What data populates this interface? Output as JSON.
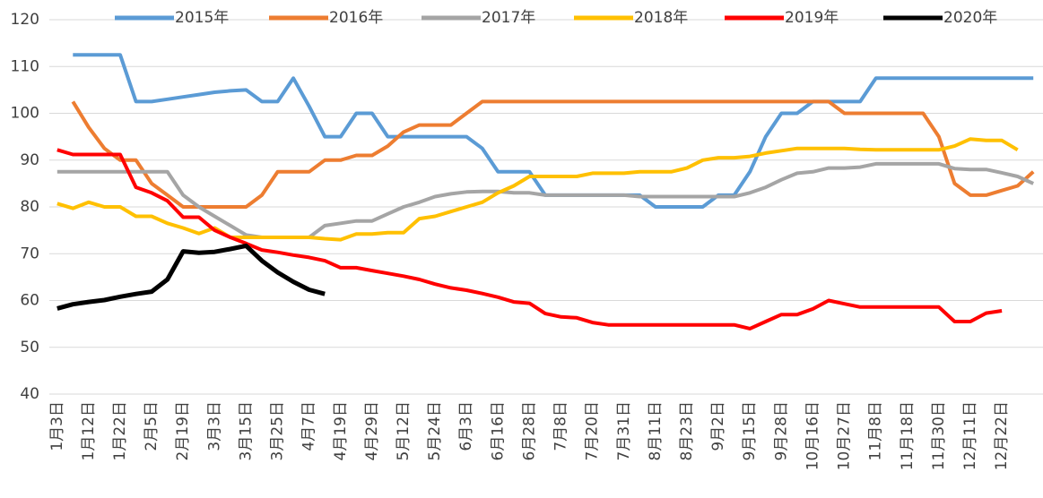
{
  "chart_data": {
    "type": "line",
    "categories": [
      "1月3日",
      null,
      "1月12日",
      null,
      "1月22日",
      null,
      "2月5日",
      null,
      "2月19日",
      null,
      "3月3日",
      null,
      "3月15日",
      null,
      "3月25日",
      null,
      "4月7日",
      null,
      "4月19日",
      null,
      "4月29日",
      null,
      "5月12日",
      null,
      "5月24日",
      null,
      "6月3日",
      null,
      "6月16日",
      null,
      "6月28日",
      null,
      "7月8日",
      null,
      "7月20日",
      null,
      "7月31日",
      null,
      "8月11日",
      null,
      "8月23日",
      null,
      "9月2日",
      null,
      "9月15日",
      null,
      "9月28日",
      null,
      "10月16日",
      null,
      "10月27日",
      null,
      "11月8日",
      null,
      "11月18日",
      null,
      "11月30日",
      null,
      "12月11日",
      null,
      "12月22日",
      null,
      null
    ],
    "series": [
      {
        "name": "2015年",
        "color": "#5b9bd5",
        "values": [
          null,
          112.5,
          112.5,
          112.5,
          112.5,
          102.5,
          102.5,
          103,
          103.5,
          104,
          104.5,
          104.8,
          105,
          102.5,
          102.5,
          107.5,
          101.5,
          95,
          95,
          100,
          100,
          95,
          95,
          95,
          95,
          95,
          95,
          92.5,
          87.5,
          87.5,
          87.5,
          82.5,
          82.5,
          82.5,
          82.5,
          82.5,
          82.5,
          82.5,
          80,
          80,
          80,
          80,
          82.5,
          82.5,
          87.5,
          95,
          100,
          100,
          102.5,
          102.5,
          102.5,
          102.5,
          107.5,
          107.5,
          107.5,
          107.5,
          107.5,
          107.5,
          107.5,
          107.5,
          107.5,
          107.5,
          107.5
        ]
      },
      {
        "name": "2016年",
        "color": "#ed7d31",
        "values": [
          null,
          102.5,
          97,
          92.5,
          90,
          90,
          85,
          82.5,
          80,
          80,
          80,
          80,
          80,
          82.5,
          87.5,
          87.5,
          87.5,
          90,
          90,
          91,
          91,
          93,
          96,
          97.5,
          97.5,
          97.5,
          100,
          102.5,
          102.5,
          102.5,
          102.5,
          102.5,
          102.5,
          102.5,
          102.5,
          102.5,
          102.5,
          102.5,
          102.5,
          102.5,
          102.5,
          102.5,
          102.5,
          102.5,
          102.5,
          102.5,
          102.5,
          102.5,
          102.5,
          102.5,
          100,
          100,
          100,
          100,
          100,
          100,
          95,
          85,
          82.5,
          82.5,
          83.5,
          84.5,
          87.5
        ]
      },
      {
        "name": "2017年",
        "color": "#a5a5a5",
        "values": [
          87.5,
          87.5,
          87.5,
          87.5,
          87.5,
          87.5,
          87.5,
          87.5,
          82.5,
          80,
          78,
          76,
          74,
          73.5,
          73.5,
          73.5,
          73.5,
          76,
          76.5,
          77,
          77,
          78.5,
          80,
          81,
          82.2,
          82.8,
          83.2,
          83.3,
          83.3,
          83,
          83,
          82.5,
          82.5,
          82.5,
          82.5,
          82.5,
          82.5,
          82.2,
          82.2,
          82.2,
          82.2,
          82.2,
          82.2,
          82.2,
          83,
          84.2,
          85.8,
          87.2,
          87.5,
          88.3,
          88.3,
          88.5,
          89.2,
          89.2,
          89.2,
          89.2,
          89.2,
          88.2,
          88,
          88,
          87.3,
          86.5,
          85
        ]
      },
      {
        "name": "2018年",
        "color": "#ffc000",
        "values": [
          80.7,
          79.7,
          81,
          80,
          80,
          78,
          78,
          76.5,
          75.5,
          74.3,
          75.5,
          73.5,
          73.5,
          73.5,
          73.5,
          73.5,
          73.5,
          73.2,
          73,
          74.2,
          74.2,
          74.5,
          74.5,
          77.5,
          78,
          79,
          80,
          81,
          83,
          84.5,
          86.5,
          86.5,
          86.5,
          86.5,
          87.2,
          87.2,
          87.2,
          87.5,
          87.5,
          87.5,
          88.3,
          90,
          90.5,
          90.5,
          90.8,
          91.5,
          92,
          92.5,
          92.5,
          92.5,
          92.5,
          92.3,
          92.2,
          92.2,
          92.2,
          92.2,
          92.2,
          93,
          94.5,
          94.2,
          94.2,
          92.2,
          null
        ]
      },
      {
        "name": "2019年",
        "color": "#ff0000",
        "values": [
          92.2,
          91.2,
          91.2,
          91.2,
          91.2,
          84.2,
          83,
          81.3,
          77.8,
          77.8,
          75,
          73.5,
          72.2,
          70.8,
          70.3,
          69.7,
          69.2,
          68.5,
          67,
          67,
          66.4,
          65.8,
          65.2,
          64.5,
          63.5,
          62.7,
          62.2,
          61.5,
          60.7,
          59.7,
          59.4,
          57.2,
          56.5,
          56.3,
          55.3,
          54.8,
          54.8,
          54.8,
          54.8,
          54.8,
          54.8,
          54.8,
          54.8,
          54.8,
          54,
          55.5,
          57,
          57,
          58.2,
          60,
          59.3,
          58.6,
          58.6,
          58.6,
          58.6,
          58.6,
          58.6,
          55.5,
          55.5,
          57.3,
          57.8,
          null,
          null
        ]
      },
      {
        "name": "2020年",
        "color": "#000000",
        "values": [
          58.3,
          59.2,
          59.7,
          60.1,
          60.8,
          61.4,
          61.9,
          64.5,
          70.5,
          70.2,
          70.4,
          71,
          71.7,
          68.5,
          66,
          64,
          62.3,
          61.4,
          null,
          null,
          null,
          null,
          null,
          null,
          null,
          null,
          null,
          null,
          null,
          null,
          null,
          null,
          null,
          null,
          null,
          null,
          null,
          null,
          null,
          null,
          null,
          null,
          null,
          null,
          null,
          null,
          null,
          null,
          null,
          null,
          null,
          null,
          null,
          null,
          null,
          null,
          null,
          null,
          null,
          null,
          null,
          null,
          null
        ]
      }
    ],
    "ylim": [
      40,
      120
    ],
    "yticks": [
      40,
      50,
      60,
      70,
      80,
      90,
      100,
      110,
      120
    ],
    "grid": true,
    "legend": "top"
  }
}
